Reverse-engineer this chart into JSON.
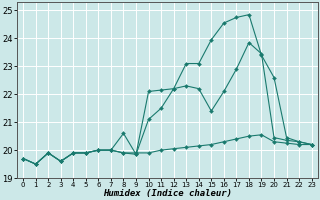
{
  "xlabel": "Humidex (Indice chaleur)",
  "background_color": "#cce8e8",
  "grid_color": "#ffffff",
  "line_color": "#1a7a6e",
  "xlim": [
    -0.5,
    23.5
  ],
  "ylim": [
    19,
    25.3
  ],
  "yticks": [
    19,
    20,
    21,
    22,
    23,
    24,
    25
  ],
  "xticks": [
    0,
    1,
    2,
    3,
    4,
    5,
    6,
    7,
    8,
    9,
    10,
    11,
    12,
    13,
    14,
    15,
    16,
    17,
    18,
    19,
    20,
    21,
    22,
    23
  ],
  "series1_x": [
    0,
    1,
    2,
    3,
    4,
    5,
    6,
    7,
    8,
    9,
    10,
    11,
    12,
    13,
    14,
    15,
    16,
    17,
    18,
    19,
    20,
    21,
    22,
    23
  ],
  "series1_y": [
    19.7,
    19.5,
    19.9,
    19.6,
    19.9,
    19.9,
    20.0,
    20.0,
    19.9,
    19.9,
    19.9,
    20.0,
    20.05,
    20.1,
    20.15,
    20.2,
    20.3,
    20.4,
    20.5,
    20.55,
    20.3,
    20.25,
    20.2,
    20.2
  ],
  "series2_x": [
    0,
    1,
    2,
    3,
    4,
    5,
    6,
    7,
    8,
    9,
    10,
    11,
    12,
    13,
    14,
    15,
    16,
    17,
    18,
    19,
    20,
    21,
    22,
    23
  ],
  "series2_y": [
    19.7,
    19.5,
    19.9,
    19.6,
    19.9,
    19.9,
    20.0,
    20.0,
    20.6,
    19.85,
    22.1,
    22.15,
    22.2,
    23.1,
    23.1,
    23.95,
    24.55,
    24.75,
    24.85,
    23.4,
    22.6,
    20.45,
    20.3,
    20.2
  ],
  "series3_x": [
    0,
    1,
    2,
    3,
    4,
    5,
    6,
    7,
    8,
    9,
    10,
    11,
    12,
    13,
    14,
    15,
    16,
    17,
    18,
    19,
    20,
    21,
    22,
    23
  ],
  "series3_y": [
    19.7,
    19.5,
    19.9,
    19.6,
    19.9,
    19.9,
    20.0,
    20.0,
    19.9,
    19.85,
    21.1,
    21.5,
    22.2,
    22.3,
    22.2,
    21.4,
    22.1,
    22.9,
    23.85,
    23.45,
    20.45,
    20.35,
    20.3,
    20.2
  ]
}
